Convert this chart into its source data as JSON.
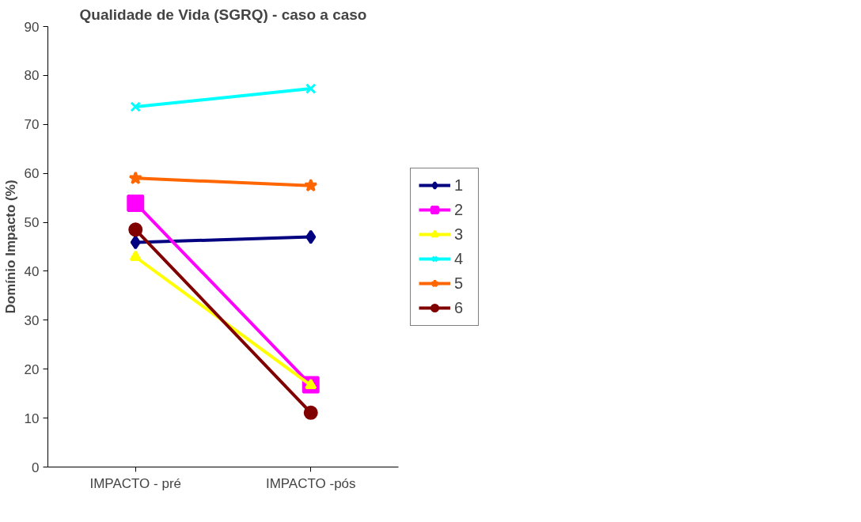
{
  "chart_data": {
    "type": "line",
    "title": "Qualidade de Vida (SGRQ) - caso a caso",
    "ylabel": "Domínio Impacto (%)",
    "categories": [
      "IMPACTO - pré",
      "IMPACTO -pós"
    ],
    "ylim": [
      0,
      90
    ],
    "yticks": [
      0,
      10,
      20,
      30,
      40,
      50,
      60,
      70,
      80,
      90
    ],
    "grid": false,
    "legend": "right",
    "series": [
      {
        "name": "1",
        "color": "#000080",
        "marker": "diamond",
        "values": [
          45.9,
          47.0
        ]
      },
      {
        "name": "2",
        "color": "#ff00ff",
        "marker": "square",
        "values": [
          53.9,
          16.8
        ]
      },
      {
        "name": "3",
        "color": "#ffff00",
        "marker": "triangle",
        "values": [
          42.9,
          16.7
        ]
      },
      {
        "name": "4",
        "color": "#00ffff",
        "marker": "cross",
        "values": [
          73.6,
          77.3
        ]
      },
      {
        "name": "5",
        "color": "#ff6600",
        "marker": "star",
        "values": [
          59.0,
          57.5
        ]
      },
      {
        "name": "6",
        "color": "#800000",
        "marker": "circle",
        "values": [
          48.5,
          11.1
        ]
      }
    ]
  }
}
